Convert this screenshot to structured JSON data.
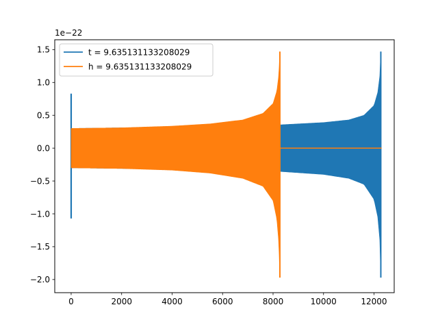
{
  "chart_data": {
    "type": "line",
    "title": "",
    "xlabel": "",
    "ylabel": "",
    "y_offset_label": "1e−22",
    "xlim": [
      -650,
      12800
    ],
    "ylim": [
      -2.2,
      1.65
    ],
    "x_ticks": [
      0,
      2000,
      4000,
      6000,
      8000,
      10000,
      12000
    ],
    "y_ticks": [
      -2.0,
      -1.5,
      -1.0,
      -0.5,
      0.0,
      0.5,
      1.0,
      1.5
    ],
    "x_tick_labels": [
      "0",
      "2000",
      "4000",
      "6000",
      "8000",
      "10000",
      "12000"
    ],
    "y_tick_labels": [
      "−2.0",
      "−1.5",
      "−1.0",
      "−0.5",
      "0.0",
      "0.5",
      "1.0",
      "1.5"
    ],
    "grid": false,
    "legend_position": "upper-left",
    "series": [
      {
        "name": "t = 9.635131133208029",
        "color": "#1f77b4",
        "spike_start": {
          "x": 0,
          "max": 0.83,
          "min": -1.07
        },
        "envelope": [
          {
            "x": 0,
            "upper": 0.3,
            "lower": -0.3
          },
          {
            "x": 2000,
            "upper": 0.31,
            "lower": -0.31
          },
          {
            "x": 4000,
            "upper": 0.32,
            "lower": -0.32
          },
          {
            "x": 6000,
            "upper": 0.335,
            "lower": -0.335
          },
          {
            "x": 8000,
            "upper": 0.345,
            "lower": -0.345
          },
          {
            "x": 8280,
            "upper": 0.355,
            "lower": -0.355
          },
          {
            "x": 10000,
            "upper": 0.39,
            "lower": -0.4
          },
          {
            "x": 11000,
            "upper": 0.43,
            "lower": -0.46
          },
          {
            "x": 11600,
            "upper": 0.5,
            "lower": -0.55
          },
          {
            "x": 12000,
            "upper": 0.65,
            "lower": -0.78
          },
          {
            "x": 12150,
            "upper": 0.85,
            "lower": -1.05
          },
          {
            "x": 12230,
            "upper": 1.1,
            "lower": -1.4
          },
          {
            "x": 12270,
            "upper": 1.47,
            "lower": -1.97
          }
        ],
        "tail_end_x": 12300
      },
      {
        "name": "h = 9.635131133208029",
        "color": "#ff7f0e",
        "envelope": [
          {
            "x": 0,
            "upper": 0.3,
            "lower": -0.3
          },
          {
            "x": 2000,
            "upper": 0.31,
            "lower": -0.31
          },
          {
            "x": 4000,
            "upper": 0.335,
            "lower": -0.335
          },
          {
            "x": 5500,
            "upper": 0.37,
            "lower": -0.38
          },
          {
            "x": 6800,
            "upper": 0.43,
            "lower": -0.46
          },
          {
            "x": 7600,
            "upper": 0.53,
            "lower": -0.58
          },
          {
            "x": 8000,
            "upper": 0.68,
            "lower": -0.8
          },
          {
            "x": 8150,
            "upper": 0.87,
            "lower": -1.08
          },
          {
            "x": 8230,
            "upper": 1.12,
            "lower": -1.45
          },
          {
            "x": 8270,
            "upper": 1.47,
            "lower": -1.97
          }
        ],
        "flat_after_x": 8290,
        "flat_end_x": 12300
      }
    ]
  }
}
